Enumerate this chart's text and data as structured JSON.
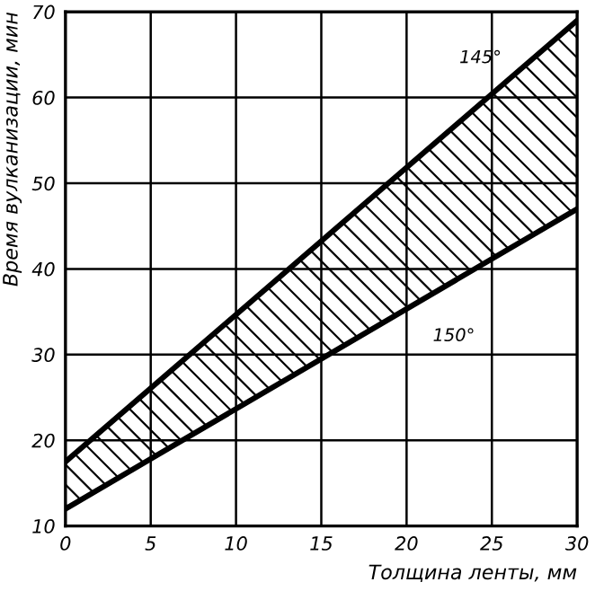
{
  "chart_data": {
    "type": "line",
    "xlabel": "Толщина ленты, мм",
    "ylabel": "Время вулканизации, мин",
    "x": [
      0,
      30
    ],
    "series": [
      {
        "name": "145°",
        "color": "#000000",
        "values": [
          17.5,
          69
        ],
        "lower": [
          12,
          47
        ],
        "upper": [
          17.5,
          69
        ]
      },
      {
        "name": "150°",
        "color": "#000000",
        "values": [
          12,
          47
        ]
      }
    ],
    "xlim": [
      0,
      30
    ],
    "xticks": [
      0,
      5,
      10,
      15,
      20,
      25,
      30
    ],
    "ylim": [
      10,
      70
    ],
    "yticks": [
      10,
      20,
      30,
      40,
      50,
      60,
      70
    ],
    "grid": true,
    "legend": false,
    "marker": "none",
    "line_style": "solid"
  }
}
